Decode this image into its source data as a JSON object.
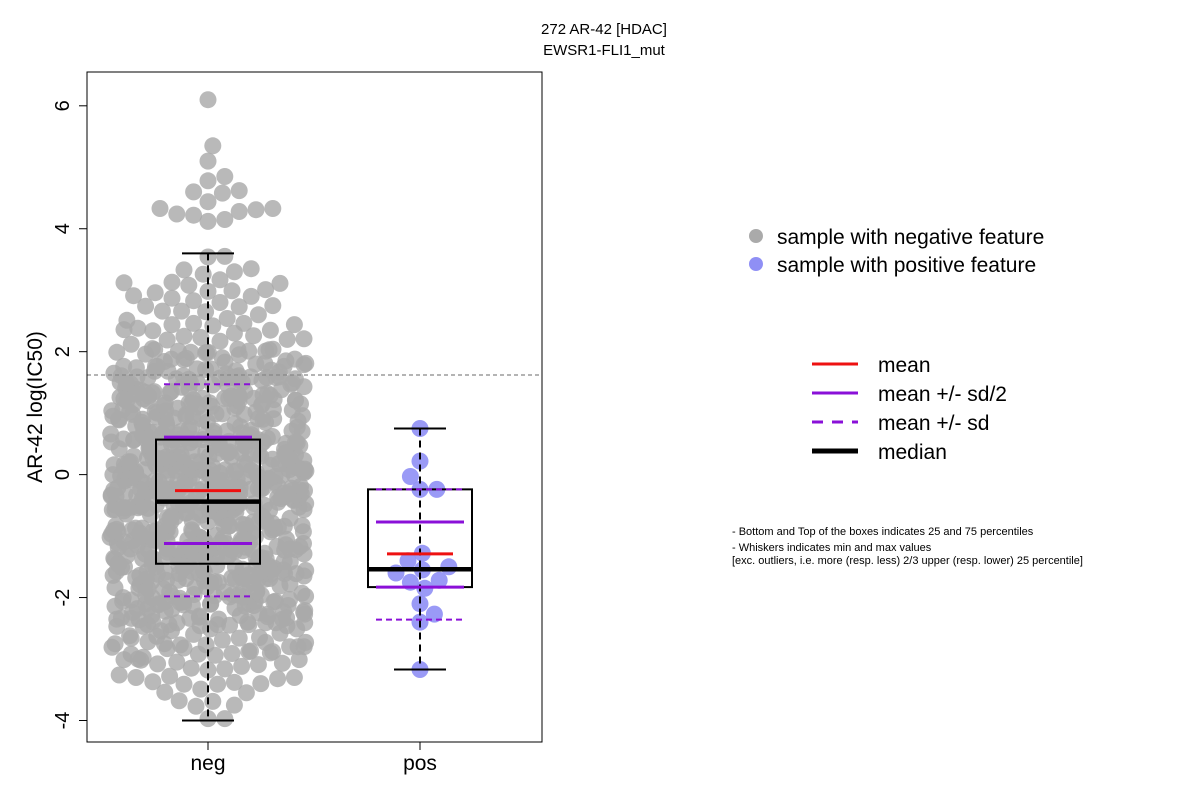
{
  "chart_data": {
    "type": "scatter",
    "title_line1": "272 AR-42 [HDAC]",
    "title_line2": "EWSR1-FLI1_mut",
    "xlabel": "",
    "ylabel": "AR-42 log(IC50)",
    "categories": [
      "neg",
      "pos"
    ],
    "y_ticks": [
      "-4",
      "-2",
      "0",
      "2",
      "4",
      "6"
    ],
    "ylim": [
      -4.35,
      6.55
    ],
    "reference_line_y": 1.62,
    "colors": {
      "negative": "#aaaaaa",
      "positive": "#8f8ff5",
      "mean": "#ee1111",
      "sd": "#8a10d8",
      "median": "#000000",
      "reference": "#888888"
    },
    "groups": [
      {
        "name": "neg",
        "n_points": 850,
        "min": -4.0,
        "q1": -1.45,
        "median": -0.44,
        "q3": 0.57,
        "max": 3.6,
        "mean": -0.26,
        "mean_minus_half_sd": -1.12,
        "mean_plus_half_sd": 0.61,
        "mean_minus_sd": -1.98,
        "mean_plus_sd": 1.47,
        "extreme_values": [
          6.1,
          5.35,
          5.1,
          4.85,
          4.78,
          4.62,
          4.6,
          4.58,
          4.44,
          4.33,
          4.33,
          4.31,
          4.24,
          -3.97,
          -3.97,
          -3.75
        ]
      },
      {
        "name": "pos",
        "min": -3.17,
        "q1": -1.83,
        "median": -1.54,
        "q3": -0.24,
        "max": 0.75,
        "mean": -1.29,
        "mean_minus_half_sd": -1.83,
        "mean_plus_half_sd": -0.77,
        "mean_minus_sd": -2.36,
        "mean_plus_sd": -0.24,
        "values": [
          0.75,
          0.22,
          -0.03,
          -0.24,
          -0.24,
          -1.28,
          -1.4,
          -1.5,
          -1.55,
          -1.6,
          -1.72,
          -1.75,
          -1.85,
          -2.1,
          -2.27,
          -2.4,
          -3.17
        ]
      }
    ],
    "legend_points": [
      {
        "label": "sample with negative feature",
        "color": "#aaaaaa"
      },
      {
        "label": "sample with positive feature",
        "color": "#8f8ff5"
      }
    ],
    "legend_lines": [
      {
        "label": "mean",
        "color": "#ee1111",
        "style": "solid"
      },
      {
        "label": "mean +/- sd/2",
        "color": "#8a10d8",
        "style": "solid"
      },
      {
        "label": "mean +/- sd",
        "color": "#8a10d8",
        "style": "dashed"
      },
      {
        "label": "median",
        "color": "#000000",
        "style": "thick"
      }
    ],
    "notes": [
      "- Bottom and Top of the boxes indicates 25 and 75 percentiles",
      "- Whiskers indicates min and max values",
      "[exc. outliers, i.e. more (resp. less) 2/3 upper (resp. lower) 25 percentile]"
    ]
  }
}
